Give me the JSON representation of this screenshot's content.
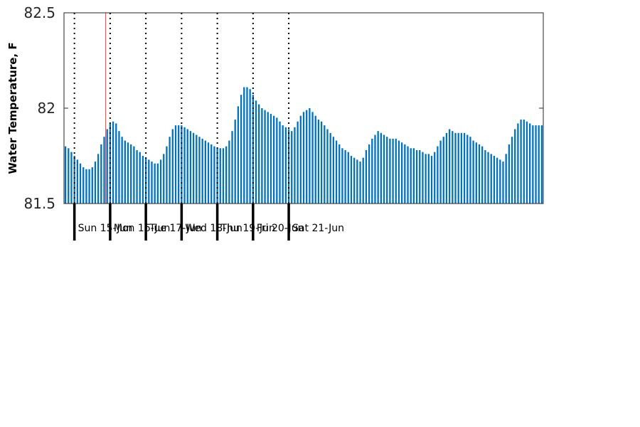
{
  "chart_data": {
    "type": "bar",
    "title": "",
    "xlabel": "",
    "ylabel": "Water Temperature, F",
    "ylim": [
      81.5,
      82.5
    ],
    "yticks": [
      "81.5",
      "82",
      "82.5"
    ],
    "ytick_values": [
      81.5,
      82.0,
      82.5
    ],
    "x_start_hours_before_first_day": 7,
    "hours_per_bar": 2,
    "day_labels": [
      "Sun 15-Jun",
      "Mon 16-Jun",
      "Tue 17-Jun",
      "Wed 18-Jun",
      "Thu 19-Jun",
      "Fri 20-Jun",
      "Sat 21-Jun"
    ],
    "current_time_marker_hours_after_first_day": 21,
    "grid": "vertical dotted lines at midnight",
    "bar_color": "#0072bd",
    "marker_color": "#ff3b3b",
    "values": [
      81.8,
      81.79,
      81.77,
      81.75,
      81.73,
      81.71,
      81.69,
      81.68,
      81.68,
      81.69,
      81.72,
      81.76,
      81.81,
      81.85,
      81.89,
      81.92,
      81.93,
      81.92,
      81.88,
      81.85,
      81.83,
      81.82,
      81.81,
      81.8,
      81.78,
      81.77,
      81.75,
      81.74,
      81.73,
      81.72,
      81.71,
      81.71,
      81.73,
      81.76,
      81.8,
      81.85,
      81.89,
      81.91,
      81.91,
      81.91,
      81.9,
      81.89,
      81.88,
      81.87,
      81.86,
      81.85,
      81.84,
      81.83,
      81.82,
      81.81,
      81.8,
      81.79,
      81.79,
      81.79,
      81.8,
      81.83,
      81.88,
      81.94,
      82.01,
      82.07,
      82.11,
      82.11,
      82.1,
      82.07,
      82.04,
      82.02,
      82.0,
      81.99,
      81.98,
      81.97,
      81.96,
      81.95,
      81.93,
      81.91,
      81.9,
      81.89,
      81.88,
      81.9,
      81.93,
      81.96,
      81.98,
      81.99,
      82.0,
      81.98,
      81.96,
      81.94,
      81.93,
      81.91,
      81.89,
      81.87,
      81.85,
      81.83,
      81.81,
      81.79,
      81.78,
      81.77,
      81.75,
      81.74,
      81.73,
      81.72,
      81.74,
      81.78,
      81.81,
      81.84,
      81.86,
      81.88,
      81.87,
      81.86,
      81.85,
      81.84,
      81.84,
      81.84,
      81.83,
      81.82,
      81.81,
      81.8,
      81.79,
      81.79,
      81.78,
      81.78,
      81.77,
      81.76,
      81.76,
      81.75,
      81.77,
      81.8,
      81.83,
      81.85,
      81.87,
      81.89,
      81.88,
      81.87,
      81.87,
      81.87,
      81.87,
      81.86,
      81.85,
      81.83,
      81.82,
      81.81,
      81.8,
      81.78,
      81.77,
      81.76,
      81.75,
      81.74,
      81.73,
      81.72,
      81.76,
      81.81,
      81.85,
      81.89,
      81.92,
      81.94,
      81.94,
      81.93,
      81.92,
      81.91,
      81.91,
      81.91,
      81.91
    ]
  }
}
